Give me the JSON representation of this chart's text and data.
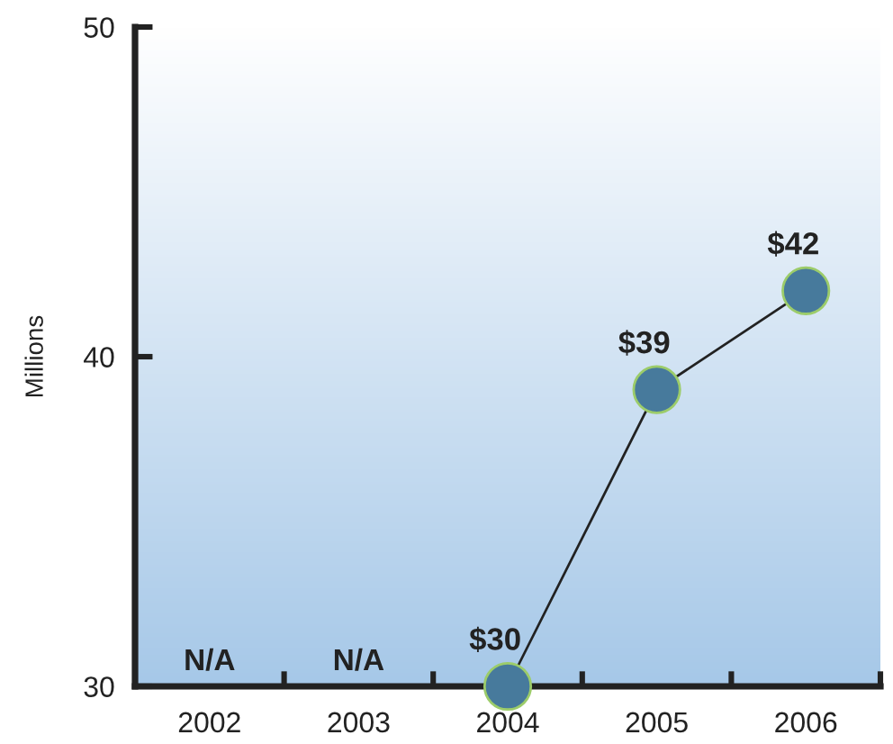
{
  "chart_data": {
    "type": "line",
    "ylabel": "Millions",
    "categories": [
      "2002",
      "2003",
      "2004",
      "2005",
      "2006"
    ],
    "series": [
      {
        "color": "#477a9c",
        "values": [
          null,
          null,
          30,
          39,
          42
        ],
        "value_labels": [
          "N/A",
          "N/A",
          "$30",
          "$39",
          "$42"
        ]
      }
    ],
    "ylim": [
      30,
      50
    ],
    "yticks": [
      30,
      40,
      50
    ],
    "grid": false,
    "legend": false,
    "marker": "circle",
    "line_style": "solid"
  }
}
